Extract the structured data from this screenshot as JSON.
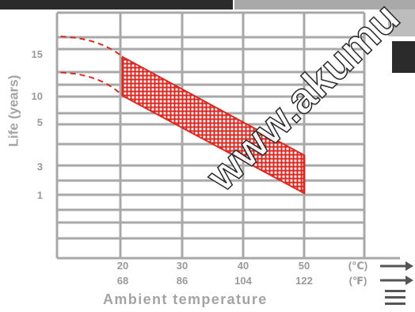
{
  "chart_data": {
    "type": "area",
    "xlabel": "Ambient temperature",
    "ylabel": "Life (years)",
    "watermark": "www.akumu",
    "x_ticks_c": [
      "20",
      "30",
      "40",
      "50",
      "(℃)"
    ],
    "x_ticks_f": [
      "68",
      "86",
      "104",
      "122",
      "(℉)"
    ],
    "y_ticks": [
      "15",
      "10",
      "5",
      "3",
      "1"
    ],
    "band_x": [
      20,
      50
    ],
    "band_upper": [
      15,
      3
    ],
    "band_lower": [
      10,
      1
    ],
    "dashed_upper": {
      "x": [
        10,
        20
      ],
      "y": [
        17,
        15
      ]
    },
    "dashed_lower": {
      "x": [
        10,
        20
      ],
      "y": [
        13,
        10
      ]
    },
    "band_color": "#d92a23",
    "grid_color": "#a8a8a8"
  }
}
